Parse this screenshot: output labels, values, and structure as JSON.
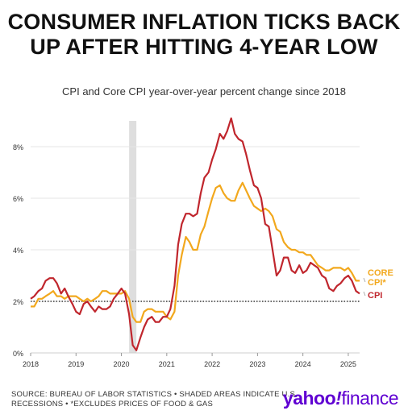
{
  "title": "CONSUMER INFLATION TICKS BACK UP AFTER HITTING 4-YEAR LOW",
  "subtitle": "CPI and Core CPI year-over-year percent change since 2018",
  "footer": {
    "line1": "SOURCE: BUREAU OF LABOR STATISTICS • SHADED AREAS INDICATE U.S.",
    "line2": "RECESSIONS • *EXCLUDES PRICES OF FOOD & GAS"
  },
  "brand": {
    "part1": "yahoo",
    "part2": "!",
    "part3": "finance"
  },
  "colors": {
    "cpi": "#c0262d",
    "core": "#f2a81d",
    "recession": "#dedede",
    "grid": "#e5e5e5"
  },
  "chart_data": {
    "type": "line",
    "title": "",
    "xlabel": "",
    "ylabel": "",
    "xlim": [
      2018.0,
      2025.25
    ],
    "ylim": [
      0,
      9
    ],
    "x_ticks": [
      2018,
      2019,
      2020,
      2021,
      2022,
      2023,
      2024,
      2025
    ],
    "x_tick_labels": [
      "2018",
      "2019",
      "2020",
      "2021",
      "2022",
      "2023",
      "2024",
      "2025"
    ],
    "y_ticks": [
      0,
      2,
      4,
      6,
      8
    ],
    "y_tick_labels": [
      "0%",
      "2%",
      "4%",
      "6%",
      "8%"
    ],
    "reference_line": {
      "y": 2,
      "style": "dotted"
    },
    "shaded_regions": [
      {
        "x_start": 2020.17,
        "x_end": 2020.33,
        "label": "recession"
      }
    ],
    "grid": true,
    "series": [
      {
        "name": "CPI",
        "label_line1": "CPI",
        "values_x": [
          2018.0,
          2018.08,
          2018.17,
          2018.25,
          2018.33,
          2018.42,
          2018.5,
          2018.58,
          2018.67,
          2018.75,
          2018.83,
          2018.92,
          2019.0,
          2019.08,
          2019.17,
          2019.25,
          2019.33,
          2019.42,
          2019.5,
          2019.58,
          2019.67,
          2019.75,
          2019.83,
          2019.92,
          2020.0,
          2020.08,
          2020.17,
          2020.25,
          2020.33,
          2020.42,
          2020.5,
          2020.58,
          2020.67,
          2020.75,
          2020.83,
          2020.92,
          2021.0,
          2021.08,
          2021.17,
          2021.25,
          2021.33,
          2021.42,
          2021.5,
          2021.58,
          2021.67,
          2021.75,
          2021.83,
          2021.92,
          2022.0,
          2022.08,
          2022.17,
          2022.25,
          2022.33,
          2022.42,
          2022.5,
          2022.58,
          2022.67,
          2022.75,
          2022.83,
          2022.92,
          2023.0,
          2023.08,
          2023.17,
          2023.25,
          2023.33,
          2023.42,
          2023.5,
          2023.58,
          2023.67,
          2023.75,
          2023.83,
          2023.92,
          2024.0,
          2024.08,
          2024.17,
          2024.25,
          2024.33,
          2024.42,
          2024.5,
          2024.58,
          2024.67,
          2024.75,
          2024.83,
          2024.92,
          2025.0,
          2025.08,
          2025.17,
          2025.25
        ],
        "values": [
          2.1,
          2.2,
          2.4,
          2.5,
          2.8,
          2.9,
          2.9,
          2.7,
          2.3,
          2.5,
          2.2,
          1.9,
          1.6,
          1.5,
          1.9,
          2.0,
          1.8,
          1.6,
          1.8,
          1.7,
          1.7,
          1.8,
          2.1,
          2.3,
          2.5,
          2.3,
          1.5,
          0.3,
          0.1,
          0.6,
          1.0,
          1.3,
          1.4,
          1.2,
          1.2,
          1.4,
          1.4,
          1.7,
          2.6,
          4.2,
          5.0,
          5.4,
          5.4,
          5.3,
          5.4,
          6.2,
          6.8,
          7.0,
          7.5,
          7.9,
          8.5,
          8.3,
          8.6,
          9.1,
          8.5,
          8.3,
          8.2,
          7.7,
          7.1,
          6.5,
          6.4,
          6.0,
          5.0,
          4.9,
          4.0,
          3.0,
          3.2,
          3.7,
          3.7,
          3.2,
          3.1,
          3.4,
          3.1,
          3.2,
          3.5,
          3.4,
          3.3,
          3.0,
          2.9,
          2.5,
          2.4,
          2.6,
          2.7,
          2.9,
          3.0,
          2.8,
          2.4,
          2.3
        ]
      },
      {
        "name": "CORE CPI*",
        "label_line1": "CORE",
        "label_line2": "CPI*",
        "values_x": [
          2018.0,
          2018.08,
          2018.17,
          2018.25,
          2018.33,
          2018.42,
          2018.5,
          2018.58,
          2018.67,
          2018.75,
          2018.83,
          2018.92,
          2019.0,
          2019.08,
          2019.17,
          2019.25,
          2019.33,
          2019.42,
          2019.5,
          2019.58,
          2019.67,
          2019.75,
          2019.83,
          2019.92,
          2020.0,
          2020.08,
          2020.17,
          2020.25,
          2020.33,
          2020.42,
          2020.5,
          2020.58,
          2020.67,
          2020.75,
          2020.83,
          2020.92,
          2021.0,
          2021.08,
          2021.17,
          2021.25,
          2021.33,
          2021.42,
          2021.5,
          2021.58,
          2021.67,
          2021.75,
          2021.83,
          2021.92,
          2022.0,
          2022.08,
          2022.17,
          2022.25,
          2022.33,
          2022.42,
          2022.5,
          2022.58,
          2022.67,
          2022.75,
          2022.83,
          2022.92,
          2023.0,
          2023.08,
          2023.17,
          2023.25,
          2023.33,
          2023.42,
          2023.5,
          2023.58,
          2023.67,
          2023.75,
          2023.83,
          2023.92,
          2024.0,
          2024.08,
          2024.17,
          2024.25,
          2024.33,
          2024.42,
          2024.5,
          2024.58,
          2024.67,
          2024.75,
          2024.83,
          2024.92,
          2025.0,
          2025.08,
          2025.17,
          2025.25
        ],
        "values": [
          1.8,
          1.8,
          2.1,
          2.1,
          2.2,
          2.3,
          2.4,
          2.2,
          2.2,
          2.1,
          2.2,
          2.2,
          2.2,
          2.1,
          2.0,
          2.1,
          2.0,
          2.1,
          2.2,
          2.4,
          2.4,
          2.3,
          2.3,
          2.3,
          2.3,
          2.4,
          2.1,
          1.4,
          1.2,
          1.2,
          1.6,
          1.7,
          1.7,
          1.6,
          1.6,
          1.6,
          1.4,
          1.3,
          1.6,
          3.0,
          3.8,
          4.5,
          4.3,
          4.0,
          4.0,
          4.6,
          4.9,
          5.5,
          6.0,
          6.4,
          6.5,
          6.2,
          6.0,
          5.9,
          5.9,
          6.3,
          6.6,
          6.3,
          6.0,
          5.7,
          5.6,
          5.5,
          5.6,
          5.5,
          5.3,
          4.8,
          4.7,
          4.3,
          4.1,
          4.0,
          4.0,
          3.9,
          3.9,
          3.8,
          3.8,
          3.6,
          3.4,
          3.3,
          3.2,
          3.2,
          3.3,
          3.3,
          3.3,
          3.2,
          3.3,
          3.1,
          2.8,
          2.8
        ]
      }
    ]
  }
}
